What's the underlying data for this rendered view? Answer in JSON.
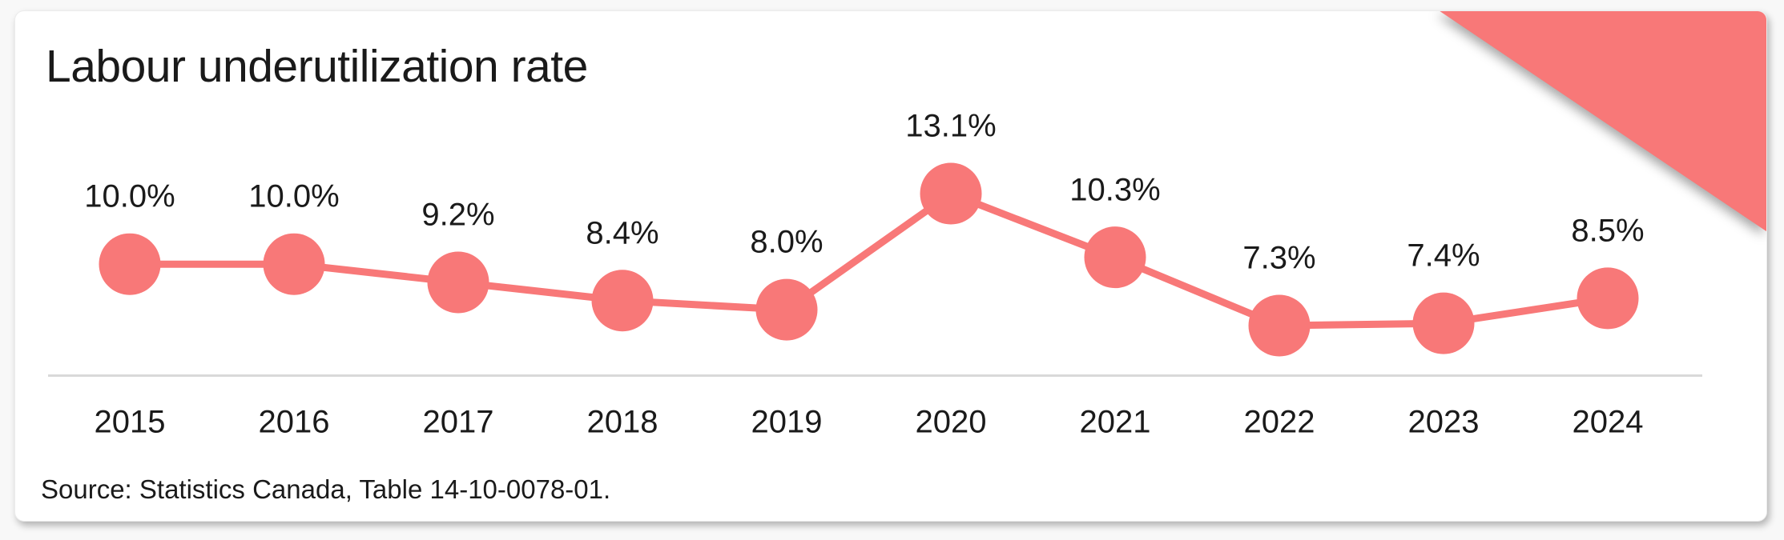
{
  "card": {
    "title": "Labour underutilization rate",
    "source_note": "Source: Statistics Canada, Table 14-10-0078-01."
  },
  "colors": {
    "accent": "#F87878",
    "axis_line": "#D9D9D9",
    "text": "#1A1A1A",
    "card_bg": "#FFFFFF",
    "page_bg": "#F8F8F8"
  },
  "decor": {
    "corner_triangle": {
      "name": "corner-triangle",
      "color": "#F87878",
      "position": "top-right"
    }
  },
  "chart_data": {
    "type": "line",
    "title": "Labour underutilization rate",
    "categories": [
      "2015",
      "2016",
      "2017",
      "2018",
      "2019",
      "2020",
      "2021",
      "2022",
      "2023",
      "2024"
    ],
    "values": [
      10.0,
      10.0,
      9.2,
      8.4,
      8.0,
      13.1,
      10.3,
      7.3,
      7.4,
      8.5
    ],
    "point_labels": [
      "10.0%",
      "10.0%",
      "9.2%",
      "8.4%",
      "8.0%",
      "13.1%",
      "10.3%",
      "7.3%",
      "7.4%",
      "8.5%"
    ],
    "unit": "%",
    "xlabel": "",
    "ylabel": "",
    "ylim": [
      6.5,
      14.0
    ],
    "grid": false,
    "legend": "none",
    "marker": "circle",
    "line_color": "#F87878",
    "source": "Source: Statistics Canada, Table 14-10-0078-01."
  }
}
